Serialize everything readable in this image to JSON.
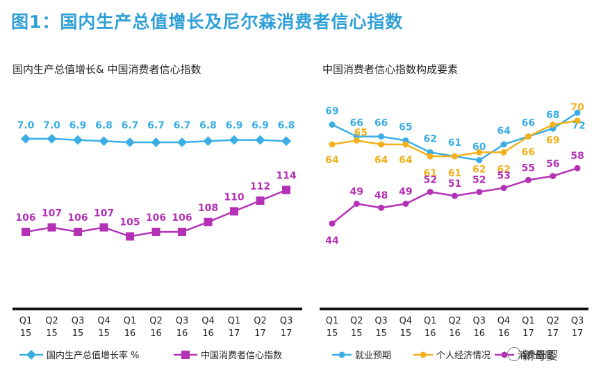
{
  "title": "图1：国内生产总值增长及尼尔森消费者信心指数",
  "watermark": "新母婴",
  "chart_data": [
    {
      "type": "line",
      "title": "国内生产总值增长&  中国消费者信心指数",
      "categories": [
        [
          "Q1",
          "15"
        ],
        [
          "Q2",
          "15"
        ],
        [
          "Q3",
          "15"
        ],
        [
          "Q4",
          "15"
        ],
        [
          "Q1",
          "16"
        ],
        [
          "Q2",
          "16"
        ],
        [
          "Q3",
          "16"
        ],
        [
          "Q4",
          "16"
        ],
        [
          "Q1",
          "17"
        ],
        [
          "Q2",
          "17"
        ],
        [
          "Q3",
          "17"
        ]
      ],
      "series": [
        {
          "name": "国内生产总值增长率 %",
          "color": "#3aaee4",
          "marker": "diamond",
          "values": [
            7.0,
            7.0,
            6.9,
            6.8,
            6.7,
            6.7,
            6.7,
            6.8,
            6.9,
            6.9,
            6.8
          ],
          "labels": [
            "7.0",
            "7.0",
            "6.9",
            "6.8",
            "6.7",
            "6.7",
            "6.7",
            "6.8",
            "6.9",
            "6.9",
            "6.8"
          ]
        },
        {
          "name": "中国消费者信心指数",
          "color": "#b331b5",
          "marker": "square",
          "values": [
            106,
            107,
            106,
            107,
            105,
            106,
            106,
            108,
            110,
            112,
            114
          ],
          "labels": [
            "106",
            "107",
            "106",
            "107",
            "105",
            "106",
            "106",
            "108",
            "110",
            "112",
            "114"
          ]
        }
      ]
    },
    {
      "type": "line",
      "title": "中国消费者信心指数构成要素",
      "categories": [
        [
          "Q1",
          "15"
        ],
        [
          "Q2",
          "15"
        ],
        [
          "Q3",
          "15"
        ],
        [
          "Q4",
          "15"
        ],
        [
          "Q1",
          "16"
        ],
        [
          "Q2",
          "16"
        ],
        [
          "Q3",
          "16"
        ],
        [
          "Q4",
          "16"
        ],
        [
          "Q1",
          "17"
        ],
        [
          "Q2",
          "17"
        ],
        [
          "Q3",
          "17"
        ]
      ],
      "series": [
        {
          "name": "就业预期",
          "color": "#3aaee4",
          "marker": "circle",
          "values": [
            69,
            66,
            66,
            65,
            62,
            61,
            60,
            64,
            66,
            68,
            72
          ],
          "labels": [
            "69",
            "66",
            "66",
            "65",
            "62",
            "61",
            "60",
            "64",
            "66",
            "68",
            "72"
          ]
        },
        {
          "name": "个人经济情况",
          "color": "#f2b01e",
          "marker": "circle",
          "values": [
            64,
            65,
            64,
            64,
            61,
            61,
            62,
            62,
            66,
            69,
            70
          ],
          "labels": [
            "64",
            "65",
            "64",
            "64",
            "61",
            "61",
            "62",
            "62",
            "66",
            "69",
            "70"
          ]
        },
        {
          "name": "消费意愿",
          "color": "#b331b5",
          "marker": "circle",
          "values": [
            44,
            49,
            48,
            49,
            52,
            51,
            52,
            53,
            55,
            56,
            58
          ],
          "labels": [
            "44",
            "49",
            "48",
            "49",
            "52",
            "51",
            "52",
            "53",
            "55",
            "56",
            "58"
          ]
        }
      ]
    }
  ]
}
